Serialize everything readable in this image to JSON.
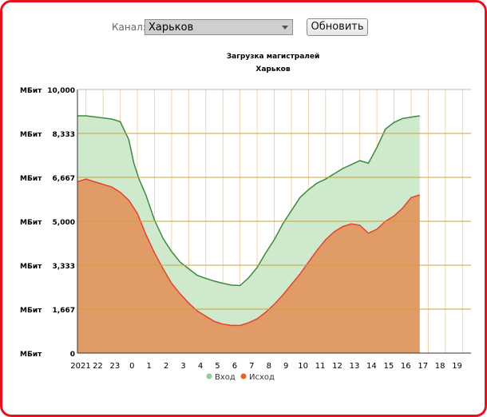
{
  "toolbar": {
    "channel_label": "Канал:",
    "channel_value": "Харьков",
    "refresh_label": "Обновить"
  },
  "colors": {
    "frame": "#e8101c",
    "incoming_fill": "#cfe9cd",
    "incoming_line": "#3c8a3c",
    "outgoing_fill": "#e09b67",
    "outgoing_line": "#e8422c",
    "grid_horizontal": "#c8a43a",
    "grid_vertical": "#f2d3a6"
  },
  "chart_data": {
    "type": "area",
    "title": "Загрузка магистралей",
    "subtitle": "Харьков",
    "ylim": [
      0,
      10000
    ],
    "y_unit": "МБит",
    "y_ticks": [
      {
        "value": 10000,
        "label": "10,000"
      },
      {
        "value": 8333,
        "label": "8,333"
      },
      {
        "value": 6667,
        "label": "6,667"
      },
      {
        "value": 5000,
        "label": "5,000"
      },
      {
        "value": 3333,
        "label": "3,333"
      },
      {
        "value": 1667,
        "label": "1,667"
      },
      {
        "value": 0,
        "label": "0"
      }
    ],
    "x_ticks": [
      "2021",
      "22",
      "23",
      "0",
      "1",
      "2",
      "3",
      "4",
      "5",
      "6",
      "7",
      "8",
      "9",
      "10",
      "11",
      "12",
      "13",
      "14",
      "15",
      "16",
      "17",
      "18",
      "19"
    ],
    "grid": true,
    "legend": "bottom",
    "series": [
      {
        "name": "Вход",
        "color": "#3c8a3c",
        "points": [
          [
            0,
            9000
          ],
          [
            0.5,
            9000
          ],
          [
            1,
            8960
          ],
          [
            1.5,
            8920
          ],
          [
            2,
            8880
          ],
          [
            2.5,
            8780
          ],
          [
            3,
            8100
          ],
          [
            3.3,
            7200
          ],
          [
            3.6,
            6600
          ],
          [
            4,
            6000
          ],
          [
            4.5,
            5050
          ],
          [
            5,
            4350
          ],
          [
            5.5,
            3850
          ],
          [
            6,
            3450
          ],
          [
            6.5,
            3200
          ],
          [
            7,
            2950
          ],
          [
            7.5,
            2830
          ],
          [
            8,
            2730
          ],
          [
            8.5,
            2650
          ],
          [
            9,
            2580
          ],
          [
            9.5,
            2560
          ],
          [
            10,
            2850
          ],
          [
            10.5,
            3250
          ],
          [
            11,
            3800
          ],
          [
            11.5,
            4300
          ],
          [
            12,
            4900
          ],
          [
            12.5,
            5400
          ],
          [
            13,
            5900
          ],
          [
            13.5,
            6200
          ],
          [
            14,
            6450
          ],
          [
            14.5,
            6600
          ],
          [
            15,
            6800
          ],
          [
            15.5,
            7000
          ],
          [
            16,
            7150
          ],
          [
            16.5,
            7300
          ],
          [
            17,
            7200
          ],
          [
            17.5,
            7800
          ],
          [
            18,
            8500
          ],
          [
            18.5,
            8750
          ],
          [
            19,
            8900
          ],
          [
            19.5,
            8950
          ],
          [
            20,
            9000
          ]
        ]
      },
      {
        "name": "Исход",
        "color": "#e8422c",
        "points": [
          [
            0,
            6500
          ],
          [
            0.5,
            6600
          ],
          [
            1,
            6500
          ],
          [
            1.5,
            6400
          ],
          [
            2,
            6300
          ],
          [
            2.5,
            6100
          ],
          [
            3,
            5800
          ],
          [
            3.5,
            5300
          ],
          [
            4,
            4500
          ],
          [
            4.5,
            3800
          ],
          [
            5,
            3200
          ],
          [
            5.5,
            2650
          ],
          [
            6,
            2250
          ],
          [
            6.5,
            1900
          ],
          [
            7,
            1600
          ],
          [
            7.5,
            1400
          ],
          [
            8,
            1200
          ],
          [
            8.5,
            1100
          ],
          [
            9,
            1050
          ],
          [
            9.5,
            1050
          ],
          [
            10,
            1150
          ],
          [
            10.5,
            1300
          ],
          [
            11,
            1550
          ],
          [
            11.5,
            1850
          ],
          [
            12,
            2200
          ],
          [
            12.5,
            2600
          ],
          [
            13,
            3000
          ],
          [
            13.5,
            3450
          ],
          [
            14,
            3900
          ],
          [
            14.5,
            4300
          ],
          [
            15,
            4600
          ],
          [
            15.5,
            4800
          ],
          [
            16,
            4900
          ],
          [
            16.5,
            4850
          ],
          [
            17,
            4550
          ],
          [
            17.5,
            4700
          ],
          [
            18,
            5000
          ],
          [
            18.5,
            5200
          ],
          [
            19,
            5500
          ],
          [
            19.5,
            5900
          ],
          [
            20,
            6000
          ]
        ]
      }
    ]
  }
}
